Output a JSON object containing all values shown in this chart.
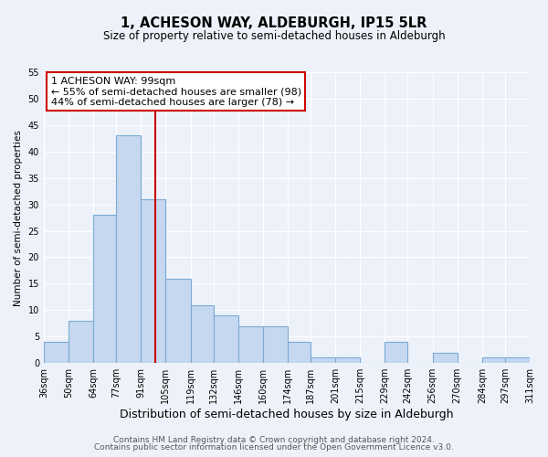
{
  "title": "1, ACHESON WAY, ALDEBURGH, IP15 5LR",
  "subtitle": "Size of property relative to semi-detached houses in Aldeburgh",
  "xlabel": "Distribution of semi-detached houses by size in Aldeburgh",
  "ylabel": "Number of semi-detached properties",
  "bin_labels": [
    "36sqm",
    "50sqm",
    "64sqm",
    "77sqm",
    "91sqm",
    "105sqm",
    "119sqm",
    "132sqm",
    "146sqm",
    "160sqm",
    "174sqm",
    "187sqm",
    "201sqm",
    "215sqm",
    "229sqm",
    "242sqm",
    "256sqm",
    "270sqm",
    "284sqm",
    "297sqm",
    "311sqm"
  ],
  "bin_edges": [
    36,
    50,
    64,
    77,
    91,
    105,
    119,
    132,
    146,
    160,
    174,
    187,
    201,
    215,
    229,
    242,
    256,
    270,
    284,
    297,
    311
  ],
  "values": [
    4,
    8,
    28,
    43,
    31,
    16,
    11,
    9,
    7,
    7,
    4,
    1,
    1,
    0,
    4,
    0,
    2,
    0,
    1,
    1
  ],
  "bar_color": "#c5d8f0",
  "bar_edge_color": "#7aaad4",
  "vline_x": 99,
  "vline_color": "#cc0000",
  "annotation_title": "1 ACHESON WAY: 99sqm",
  "annotation_line1": "← 55% of semi-detached houses are smaller (98)",
  "annotation_line2": "44% of semi-detached houses are larger (78) →",
  "annotation_box_facecolor": "#ffffff",
  "annotation_box_edgecolor": "#cc0000",
  "ylim": [
    0,
    55
  ],
  "yticks": [
    0,
    5,
    10,
    15,
    20,
    25,
    30,
    35,
    40,
    45,
    50,
    55
  ],
  "footer1": "Contains HM Land Registry data © Crown copyright and database right 2024.",
  "footer2": "Contains public sector information licensed under the Open Government Licence v3.0.",
  "background_color": "#edf2fa",
  "grid_color": "#ffffff",
  "title_fontsize": 10.5,
  "subtitle_fontsize": 8.5,
  "xlabel_fontsize": 9,
  "ylabel_fontsize": 7.5,
  "tick_fontsize": 7,
  "annotation_fontsize": 8,
  "footer_fontsize": 6.5
}
